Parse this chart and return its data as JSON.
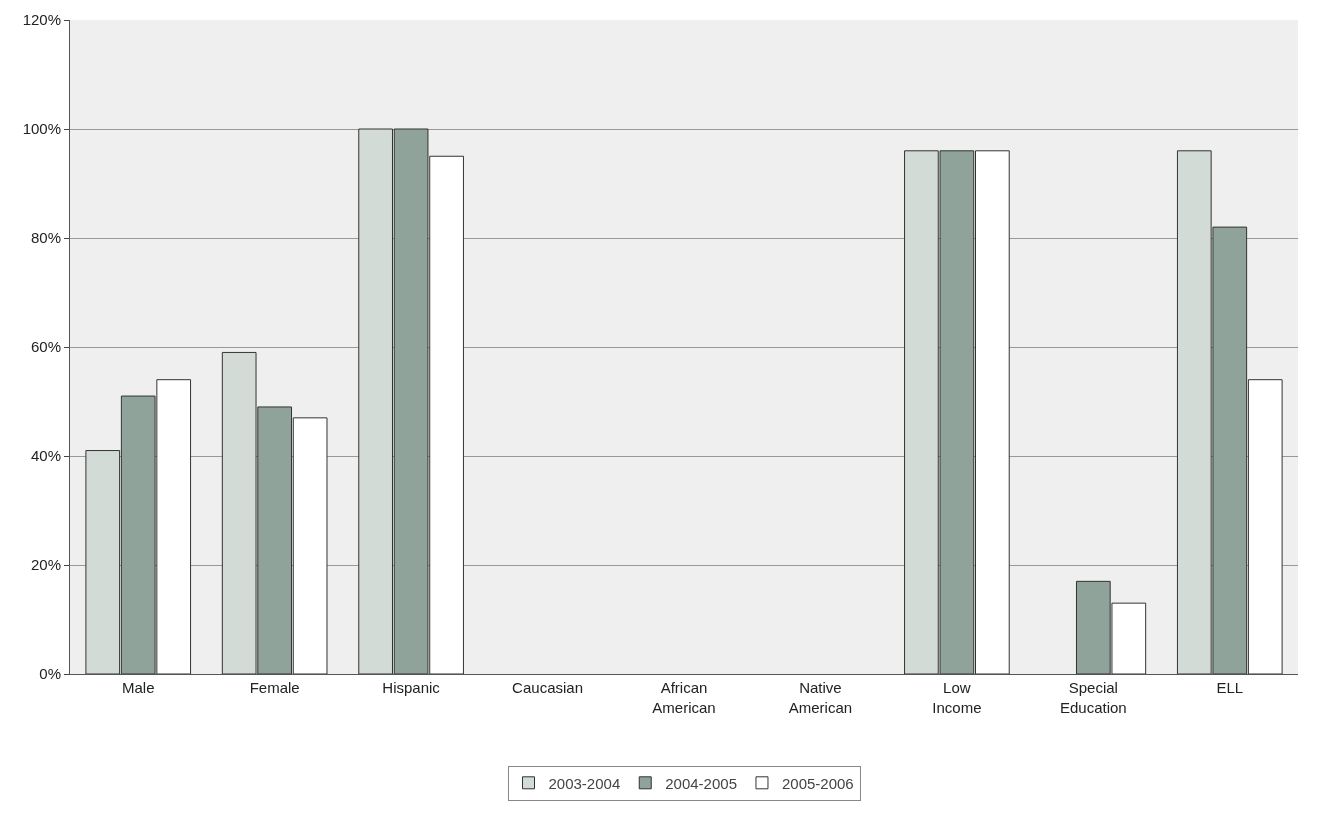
{
  "chart_data": {
    "type": "bar",
    "categories": [
      "Male",
      "Female",
      "Hispanic",
      "Caucasian",
      "African American",
      "Native American",
      "Low Income",
      "Special Education",
      "ELL"
    ],
    "series": [
      {
        "name": "2003-2004",
        "color": "#d3dbd7",
        "values": [
          41,
          59,
          100,
          null,
          null,
          null,
          96,
          null,
          96
        ]
      },
      {
        "name": "2004-2005",
        "color": "#8fa39a",
        "values": [
          51,
          49,
          100,
          null,
          null,
          null,
          96,
          17,
          82
        ]
      },
      {
        "name": "2005-2006",
        "color": "#ffffff",
        "values": [
          54,
          47,
          95,
          null,
          null,
          null,
          96,
          13,
          54
        ]
      }
    ],
    "ylim": [
      0,
      120
    ],
    "yticks": [
      {
        "value": 0,
        "label": "0%"
      },
      {
        "value": 20,
        "label": "20%"
      },
      {
        "value": 40,
        "label": "40%"
      },
      {
        "value": 60,
        "label": "60%"
      },
      {
        "value": 80,
        "label": "80%"
      },
      {
        "value": 100,
        "label": "100%"
      },
      {
        "value": 120,
        "label": "120%"
      }
    ],
    "grid": "y",
    "legend": "bottom"
  }
}
